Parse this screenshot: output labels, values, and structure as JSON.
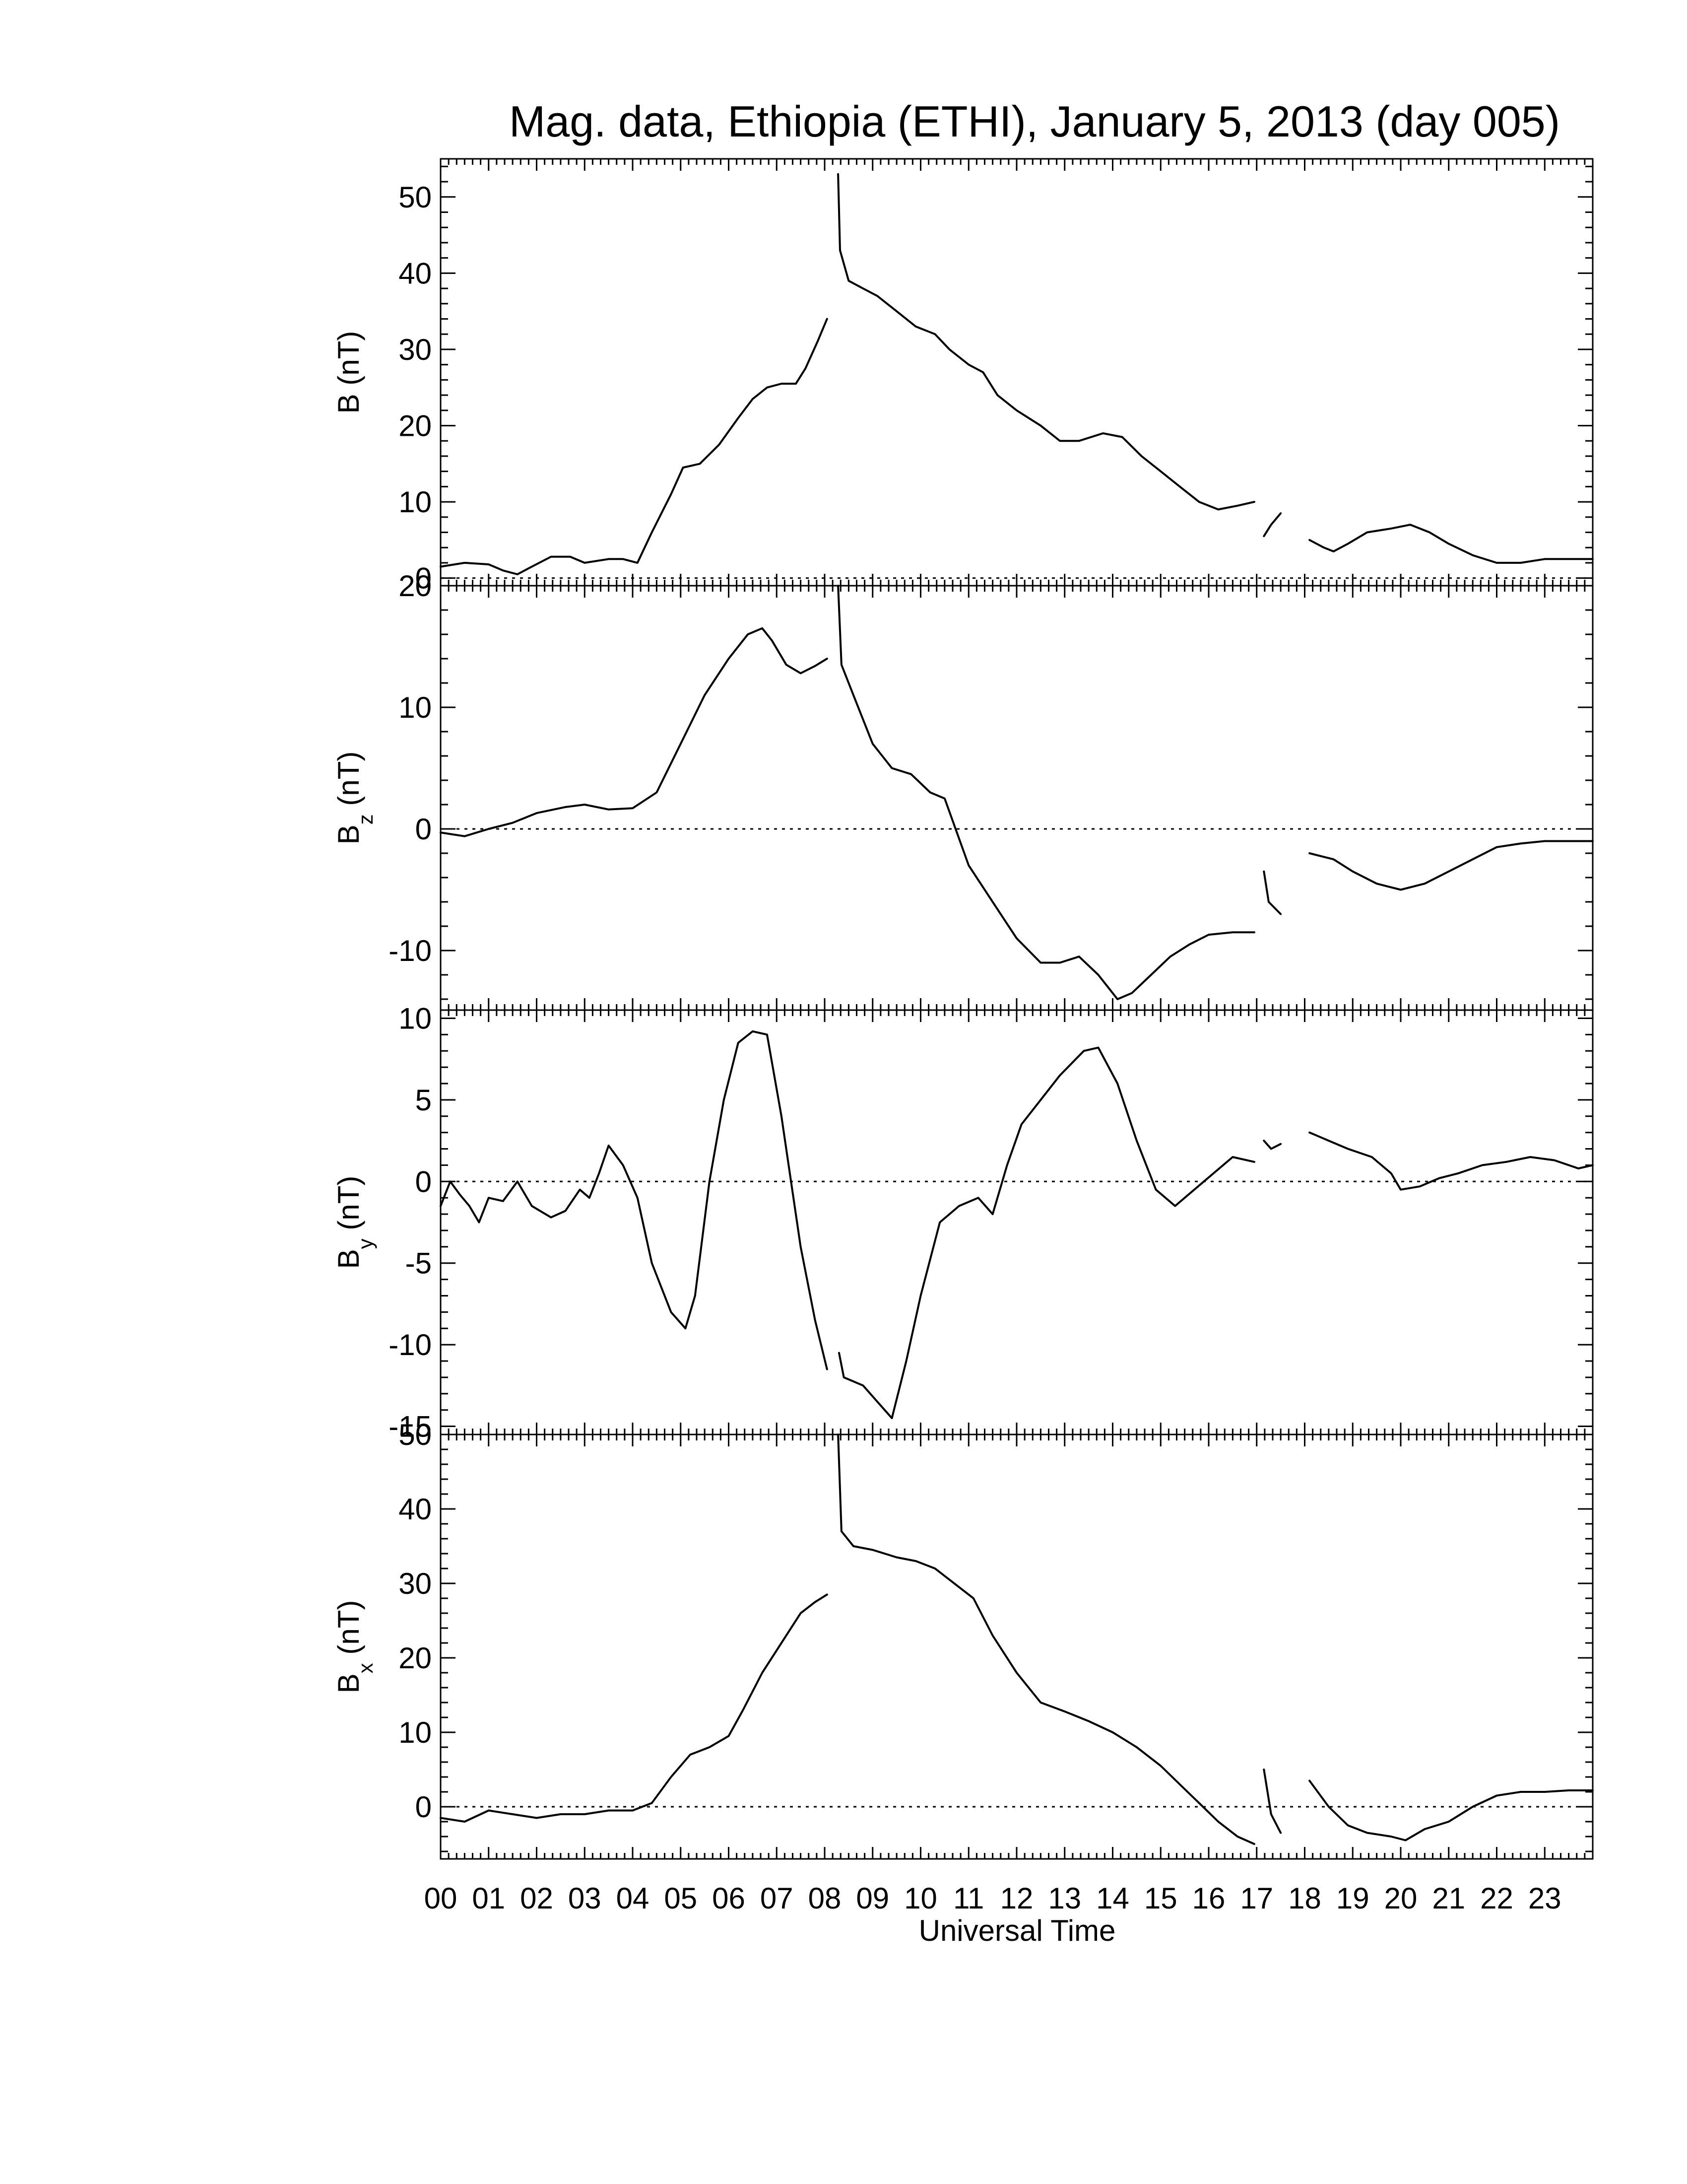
{
  "chart_data": {
    "type": "line",
    "title": "Mag. data, Ethiopia (ETHI), January 5, 2013 (day 005)",
    "xlabel": "Universal Time",
    "x_units": "hours UT",
    "xlim": [
      0,
      24
    ],
    "x_tick_labels": [
      "00",
      "01",
      "02",
      "03",
      "04",
      "05",
      "06",
      "07",
      "08",
      "09",
      "10",
      "11",
      "12",
      "13",
      "14",
      "15",
      "16",
      "17",
      "18",
      "19",
      "20",
      "21",
      "22",
      "23"
    ],
    "zero_line": "dotted",
    "panels": [
      {
        "id": "B",
        "ylabel_main": "B",
        "ylabel_sub": "",
        "ylabel_unit": "(nT)",
        "ylim": [
          -1,
          55
        ],
        "yticks": [
          0,
          10,
          20,
          30,
          40,
          50
        ],
        "segments": [
          [
            [
              0,
              1.5
            ],
            [
              0.5,
              2
            ],
            [
              1,
              1.8
            ],
            [
              1.3,
              1
            ],
            [
              1.6,
              0.5
            ],
            [
              1.9,
              1.5
            ],
            [
              2.3,
              2.8
            ],
            [
              2.7,
              2.8
            ],
            [
              3,
              2
            ],
            [
              3.5,
              2.5
            ],
            [
              3.8,
              2.5
            ],
            [
              4.1,
              2
            ],
            [
              4.4,
              6
            ],
            [
              4.8,
              11
            ],
            [
              5.05,
              14.5
            ],
            [
              5.4,
              15
            ],
            [
              5.8,
              17.5
            ],
            [
              6.2,
              21
            ],
            [
              6.5,
              23.5
            ],
            [
              6.8,
              25
            ],
            [
              7.1,
              25.5
            ],
            [
              7.4,
              25.5
            ],
            [
              7.6,
              27.5
            ],
            [
              7.85,
              31
            ],
            [
              8.05,
              34
            ]
          ],
          [
            [
              8.28,
              53
            ],
            [
              8.32,
              43
            ],
            [
              8.5,
              39
            ],
            [
              8.8,
              38
            ],
            [
              9.1,
              37
            ],
            [
              9.5,
              35
            ],
            [
              9.9,
              33
            ],
            [
              10.3,
              32
            ],
            [
              10.6,
              30
            ],
            [
              11,
              28
            ],
            [
              11.3,
              27
            ],
            [
              11.6,
              24
            ],
            [
              12,
              22
            ],
            [
              12.5,
              20
            ],
            [
              12.9,
              18
            ],
            [
              13.3,
              18
            ],
            [
              13.8,
              19
            ],
            [
              14.2,
              18.5
            ],
            [
              14.6,
              16
            ],
            [
              15,
              14
            ],
            [
              15.4,
              12
            ],
            [
              15.8,
              10
            ],
            [
              16.2,
              9
            ],
            [
              16.6,
              9.5
            ],
            [
              16.95,
              10
            ]
          ],
          [
            [
              17.15,
              5.5
            ],
            [
              17.3,
              7
            ],
            [
              17.5,
              8.5
            ]
          ],
          [
            [
              18.1,
              5
            ],
            [
              18.4,
              4
            ],
            [
              18.6,
              3.5
            ],
            [
              18.9,
              4.5
            ],
            [
              19.3,
              6
            ],
            [
              19.8,
              6.5
            ],
            [
              20.2,
              7
            ],
            [
              20.6,
              6
            ],
            [
              21,
              4.5
            ],
            [
              21.5,
              3
            ],
            [
              22,
              2
            ],
            [
              22.5,
              2
            ],
            [
              23,
              2.5
            ],
            [
              23.5,
              2.5
            ],
            [
              24,
              2.5
            ]
          ]
        ]
      },
      {
        "id": "Bz",
        "ylabel_main": "B",
        "ylabel_sub": "z",
        "ylabel_unit": "(nT)",
        "ylim": [
          -14.9,
          20
        ],
        "yticks": [
          -10,
          0,
          10,
          20
        ],
        "segments": [
          [
            [
              0,
              -0.3
            ],
            [
              0.5,
              -0.6
            ],
            [
              1,
              0
            ],
            [
              1.5,
              0.5
            ],
            [
              2,
              1.3
            ],
            [
              2.6,
              1.8
            ],
            [
              3,
              2
            ],
            [
              3.5,
              1.6
            ],
            [
              4,
              1.7
            ],
            [
              4.5,
              3
            ],
            [
              5,
              7
            ],
            [
              5.5,
              11
            ],
            [
              6,
              14
            ],
            [
              6.4,
              16
            ],
            [
              6.7,
              16.5
            ],
            [
              6.9,
              15.5
            ],
            [
              7.2,
              13.5
            ],
            [
              7.5,
              12.8
            ],
            [
              7.8,
              13.4
            ],
            [
              8.05,
              14
            ]
          ],
          [
            [
              8.28,
              20
            ],
            [
              8.35,
              13.5
            ],
            [
              8.6,
              11
            ],
            [
              9,
              7
            ],
            [
              9.4,
              5
            ],
            [
              9.8,
              4.5
            ],
            [
              10.2,
              3
            ],
            [
              10.5,
              2.5
            ],
            [
              11,
              -3
            ],
            [
              11.5,
              -6
            ],
            [
              12,
              -9
            ],
            [
              12.5,
              -11
            ],
            [
              12.9,
              -11
            ],
            [
              13.3,
              -10.5
            ],
            [
              13.7,
              -12
            ],
            [
              14.1,
              -14
            ],
            [
              14.4,
              -13.5
            ],
            [
              14.8,
              -12
            ],
            [
              15.2,
              -10.5
            ],
            [
              15.6,
              -9.5
            ],
            [
              16.0,
              -8.7
            ],
            [
              16.5,
              -8.5
            ],
            [
              16.95,
              -8.5
            ]
          ],
          [
            [
              17.15,
              -3.5
            ],
            [
              17.25,
              -6
            ],
            [
              17.5,
              -7
            ]
          ],
          [
            [
              18.1,
              -2
            ],
            [
              18.6,
              -2.5
            ],
            [
              19,
              -3.5
            ],
            [
              19.5,
              -4.5
            ],
            [
              20,
              -5
            ],
            [
              20.5,
              -4.5
            ],
            [
              21,
              -3.5
            ],
            [
              21.5,
              -2.5
            ],
            [
              22,
              -1.5
            ],
            [
              22.5,
              -1.2
            ],
            [
              23,
              -1
            ],
            [
              24,
              -1
            ]
          ]
        ]
      },
      {
        "id": "By",
        "ylabel_main": "B",
        "ylabel_sub": "y",
        "ylabel_unit": "(nT)",
        "ylim": [
          -15.5,
          10.5
        ],
        "yticks": [
          -15,
          -10,
          -5,
          0,
          5,
          10
        ],
        "segments": [
          [
            [
              0,
              -1.5
            ],
            [
              0.2,
              0
            ],
            [
              0.4,
              -0.8
            ],
            [
              0.6,
              -1.5
            ],
            [
              0.8,
              -2.5
            ],
            [
              1.0,
              -1
            ],
            [
              1.3,
              -1.2
            ],
            [
              1.6,
              0
            ],
            [
              1.9,
              -1.5
            ],
            [
              2.3,
              -2.2
            ],
            [
              2.6,
              -1.8
            ],
            [
              2.9,
              -0.5
            ],
            [
              3.1,
              -1
            ],
            [
              3.3,
              0.5
            ],
            [
              3.5,
              2.2
            ],
            [
              3.8,
              1
            ],
            [
              4.1,
              -1
            ],
            [
              4.4,
              -5
            ],
            [
              4.8,
              -8
            ],
            [
              5.1,
              -9
            ],
            [
              5.3,
              -7
            ],
            [
              5.6,
              0
            ],
            [
              5.9,
              5
            ],
            [
              6.2,
              8.5
            ],
            [
              6.5,
              9.2
            ],
            [
              6.8,
              9
            ],
            [
              7.1,
              4
            ],
            [
              7.5,
              -4
            ],
            [
              7.8,
              -8.5
            ],
            [
              8.05,
              -11.5
            ]
          ],
          [
            [
              8.3,
              -10.5
            ],
            [
              8.4,
              -12
            ],
            [
              8.8,
              -12.5
            ],
            [
              9.1,
              -13.5
            ],
            [
              9.4,
              -14.5
            ],
            [
              9.7,
              -11
            ],
            [
              10,
              -7
            ],
            [
              10.4,
              -2.5
            ],
            [
              10.8,
              -1.5
            ],
            [
              11.2,
              -1
            ],
            [
              11.5,
              -2
            ],
            [
              11.8,
              1
            ],
            [
              12.1,
              3.5
            ],
            [
              12.5,
              5
            ],
            [
              12.9,
              6.5
            ],
            [
              13.4,
              8
            ],
            [
              13.7,
              8.2
            ],
            [
              14.1,
              6
            ],
            [
              14.5,
              2.5
            ],
            [
              14.9,
              -0.5
            ],
            [
              15.3,
              -1.5
            ],
            [
              15.7,
              -0.5
            ],
            [
              16.1,
              0.5
            ],
            [
              16.5,
              1.5
            ],
            [
              16.95,
              1.2
            ]
          ],
          [
            [
              17.15,
              2.5
            ],
            [
              17.3,
              2
            ],
            [
              17.5,
              2.3
            ]
          ],
          [
            [
              18.1,
              3
            ],
            [
              18.5,
              2.5
            ],
            [
              18.9,
              2
            ],
            [
              19.4,
              1.5
            ],
            [
              19.8,
              0.5
            ],
            [
              20,
              -0.5
            ],
            [
              20.4,
              -0.3
            ],
            [
              20.8,
              0.2
            ],
            [
              21.2,
              0.5
            ],
            [
              21.7,
              1
            ],
            [
              22.2,
              1.2
            ],
            [
              22.7,
              1.5
            ],
            [
              23.2,
              1.3
            ],
            [
              23.7,
              0.8
            ],
            [
              24,
              1
            ]
          ]
        ]
      },
      {
        "id": "Bx",
        "ylabel_main": "B",
        "ylabel_sub": "x",
        "ylabel_unit": "(nT)",
        "ylim": [
          -7,
          50
        ],
        "yticks": [
          0,
          10,
          20,
          30,
          40,
          50
        ],
        "segments": [
          [
            [
              0,
              -1.5
            ],
            [
              0.5,
              -2
            ],
            [
              1,
              -0.5
            ],
            [
              1.5,
              -1
            ],
            [
              2,
              -1.5
            ],
            [
              2.5,
              -1
            ],
            [
              3,
              -1
            ],
            [
              3.5,
              -0.5
            ],
            [
              4,
              -0.5
            ],
            [
              4.4,
              0.5
            ],
            [
              4.8,
              4
            ],
            [
              5.2,
              7
            ],
            [
              5.6,
              8
            ],
            [
              6,
              9.5
            ],
            [
              6.3,
              13
            ],
            [
              6.7,
              18
            ],
            [
              7.1,
              22
            ],
            [
              7.5,
              26
            ],
            [
              7.8,
              27.5
            ],
            [
              8.05,
              28.5
            ]
          ],
          [
            [
              8.28,
              50
            ],
            [
              8.35,
              37
            ],
            [
              8.6,
              35
            ],
            [
              9,
              34.5
            ],
            [
              9.5,
              33.5
            ],
            [
              9.9,
              33
            ],
            [
              10.3,
              32
            ],
            [
              10.7,
              30
            ],
            [
              11.1,
              28
            ],
            [
              11.5,
              23
            ],
            [
              12,
              18
            ],
            [
              12.5,
              14
            ],
            [
              13,
              12.8
            ],
            [
              13.5,
              11.5
            ],
            [
              14,
              10
            ],
            [
              14.5,
              8
            ],
            [
              15,
              5.5
            ],
            [
              15.4,
              3
            ],
            [
              15.8,
              0.5
            ],
            [
              16.2,
              -2
            ],
            [
              16.6,
              -4
            ],
            [
              16.95,
              -5
            ]
          ],
          [
            [
              17.15,
              5
            ],
            [
              17.3,
              -1
            ],
            [
              17.5,
              -3.5
            ]
          ],
          [
            [
              18.1,
              3.5
            ],
            [
              18.5,
              0
            ],
            [
              18.9,
              -2.5
            ],
            [
              19.3,
              -3.5
            ],
            [
              19.8,
              -4
            ],
            [
              20.1,
              -4.5
            ],
            [
              20.5,
              -3
            ],
            [
              21,
              -2
            ],
            [
              21.5,
              0
            ],
            [
              22,
              1.5
            ],
            [
              22.5,
              2
            ],
            [
              23,
              2
            ],
            [
              23.5,
              2.2
            ],
            [
              24,
              2.2
            ]
          ]
        ]
      }
    ]
  }
}
